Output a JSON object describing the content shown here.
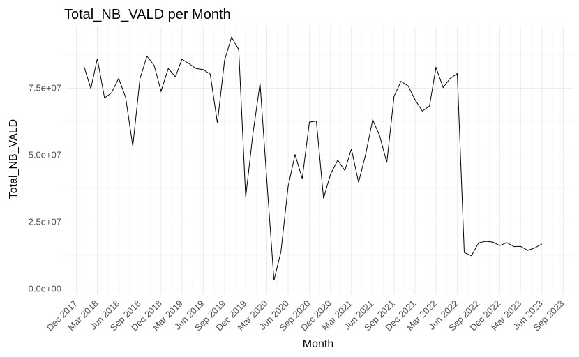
{
  "chart_data": {
    "type": "line",
    "title": "Total_NB_VALD per Month",
    "xlabel": "Month",
    "ylabel": "Total_NB_VALD",
    "x_ticks": [
      "Dec 2017",
      "Mar 2018",
      "Jun 2018",
      "Sep 2018",
      "Dec 2018",
      "Mar 2019",
      "Jun 2019",
      "Sep 2019",
      "Dec 2019",
      "Mar 2020",
      "Jun 2020",
      "Sep 2020",
      "Dec 2020",
      "Mar 2021",
      "Jun 2021",
      "Sep 2021",
      "Dec 2021",
      "Mar 2022",
      "Jun 2022",
      "Sep 2022",
      "Dec 2022",
      "Mar 2023",
      "Jun 2023",
      "Sep 2023"
    ],
    "y_ticks": [
      {
        "value": 0,
        "label": "0.0e+00"
      },
      {
        "value": 25000000,
        "label": "2.5e+07"
      },
      {
        "value": 50000000,
        "label": "5.0e+07"
      },
      {
        "value": 75000000,
        "label": "7.5e+07"
      }
    ],
    "ylim": [
      -2000000,
      98000000
    ],
    "xlim": [
      "2017-10-15",
      "2023-10-15"
    ],
    "grid": true,
    "series": [
      {
        "x": [
          "2018-01",
          "2018-02",
          "2018-03",
          "2018-04",
          "2018-05",
          "2018-06",
          "2018-07",
          "2018-08",
          "2018-09",
          "2018-10",
          "2018-11",
          "2018-12",
          "2019-01",
          "2019-02",
          "2019-03",
          "2019-04",
          "2019-05",
          "2019-06",
          "2019-07",
          "2019-08",
          "2019-09",
          "2019-10",
          "2019-11",
          "2019-12",
          "2020-01",
          "2020-02",
          "2020-03",
          "2020-04",
          "2020-05",
          "2020-06",
          "2020-07",
          "2020-08",
          "2020-09",
          "2020-10",
          "2020-11",
          "2020-12",
          "2021-01",
          "2021-02",
          "2021-03",
          "2021-04",
          "2021-05",
          "2021-06",
          "2021-07",
          "2021-08",
          "2021-09",
          "2021-10",
          "2021-11",
          "2021-12",
          "2022-01",
          "2022-02",
          "2022-03",
          "2022-04",
          "2022-05",
          "2022-06",
          "2022-07",
          "2022-08",
          "2022-09",
          "2022-10",
          "2022-11",
          "2022-12",
          "2023-01",
          "2023-02",
          "2023-03",
          "2023-04",
          "2023-05",
          "2023-06"
        ],
        "y": [
          83500000,
          74800000,
          86000000,
          71300000,
          73200000,
          78600000,
          71600000,
          53300000,
          78500000,
          86900000,
          83500000,
          73800000,
          82300000,
          79200000,
          85800000,
          84100000,
          82300000,
          81900000,
          80200000,
          62000000,
          85400000,
          94000000,
          89400000,
          34200000,
          57800000,
          76800000,
          40800000,
          3200000,
          13800000,
          38200000,
          50200000,
          41200000,
          62300000,
          62700000,
          33800000,
          42800000,
          48100000,
          44200000,
          52300000,
          39800000,
          50000000,
          63200000,
          57200000,
          47200000,
          71900000,
          77500000,
          75800000,
          70600000,
          66400000,
          68300000,
          82700000,
          75200000,
          78600000,
          80400000,
          13600000,
          12400000,
          17200000,
          17800000,
          17500000,
          16200000,
          17300000,
          15800000,
          15900000,
          14400000,
          15300000,
          16800000
        ]
      }
    ]
  }
}
